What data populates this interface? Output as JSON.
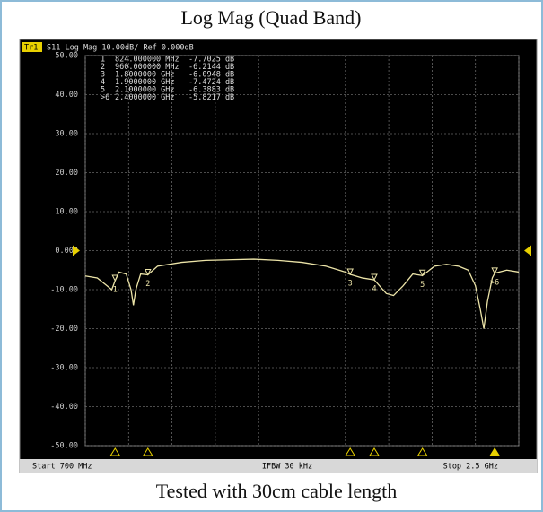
{
  "chart_data": {
    "type": "line",
    "title": "Log Mag (Quad Band)",
    "header": {
      "trace": "Tr1",
      "info": "S11  Log Mag 10.00dB/ Ref 0.000dB"
    },
    "caption": "Tested with 30cm cable length",
    "footer": {
      "start": "Start 700 MHz",
      "ifbw": "IFBW 30 kHz",
      "stop": "Stop 2.5 GHz"
    },
    "xlim": [
      700,
      2500
    ],
    "ylim": [
      -50,
      50
    ],
    "yticks": [
      {
        "value": 50,
        "label": "50.00"
      },
      {
        "value": 40,
        "label": "40.00"
      },
      {
        "value": 30,
        "label": "30.00"
      },
      {
        "value": 20,
        "label": "20.00"
      },
      {
        "value": 10,
        "label": "10.00"
      },
      {
        "value": 0,
        "label": "0.000"
      },
      {
        "value": -10,
        "label": "-10.00"
      },
      {
        "value": -20,
        "label": "-20.00"
      },
      {
        "value": -30,
        "label": "-30.00"
      },
      {
        "value": -40,
        "label": "-40.00"
      },
      {
        "value": -50,
        "label": "-50.00"
      }
    ],
    "x_divisions": [
      700,
      880,
      1060,
      1240,
      1420,
      1600,
      1780,
      1960,
      2140,
      2320,
      2500
    ],
    "grid": true,
    "series": [
      {
        "name": "S11",
        "color": "#ece4a8",
        "x": [
          700,
          750,
          790,
          810,
          824,
          840,
          870,
          890,
          900,
          910,
          930,
          960,
          1000,
          1100,
          1200,
          1400,
          1500,
          1600,
          1700,
          1780,
          1800,
          1850,
          1900,
          1950,
          1980,
          2020,
          2060,
          2100,
          2150,
          2200,
          2250,
          2290,
          2320,
          2340,
          2355,
          2370,
          2390,
          2400,
          2450,
          2500
        ],
        "values": [
          -6.5,
          -7,
          -9,
          -10,
          -7.7,
          -5.5,
          -6,
          -10,
          -14,
          -10,
          -6,
          -6.2,
          -4,
          -3,
          -2.5,
          -2.2,
          -2.5,
          -3,
          -4,
          -5.5,
          -6.1,
          -7,
          -7.5,
          -11,
          -11.5,
          -9,
          -6,
          -6.4,
          -4,
          -3.5,
          -4,
          -5,
          -9,
          -15,
          -20,
          -13,
          -7,
          -5.8,
          -5,
          -5.5
        ]
      }
    ],
    "markers": [
      {
        "name": "1",
        "x": 824,
        "x_label": "824.000000 MHz",
        "value": -7.7025,
        "value_label": "-7.7025 dB"
      },
      {
        "name": "2",
        "x": 960,
        "x_label": "960.000000 MHz",
        "value": -6.2144,
        "value_label": "-6.2144 dB"
      },
      {
        "name": "3",
        "x": 1800,
        "x_label": "1.8000000 GHz",
        "value": -6.0948,
        "value_label": "-6.0948 dB"
      },
      {
        "name": "4",
        "x": 1900,
        "x_label": "1.9000000 GHz",
        "value": -7.4724,
        "value_label": "-7.4724 dB"
      },
      {
        "name": "5",
        "x": 2100,
        "x_label": "2.1000000 GHz",
        "value": -6.3883,
        "value_label": "-6.3883 dB"
      },
      {
        "name": ">6",
        "x": 2400,
        "x_label": "2.4000000 GHz",
        "value": -5.8217,
        "value_label": "-5.8217 dB"
      }
    ]
  }
}
